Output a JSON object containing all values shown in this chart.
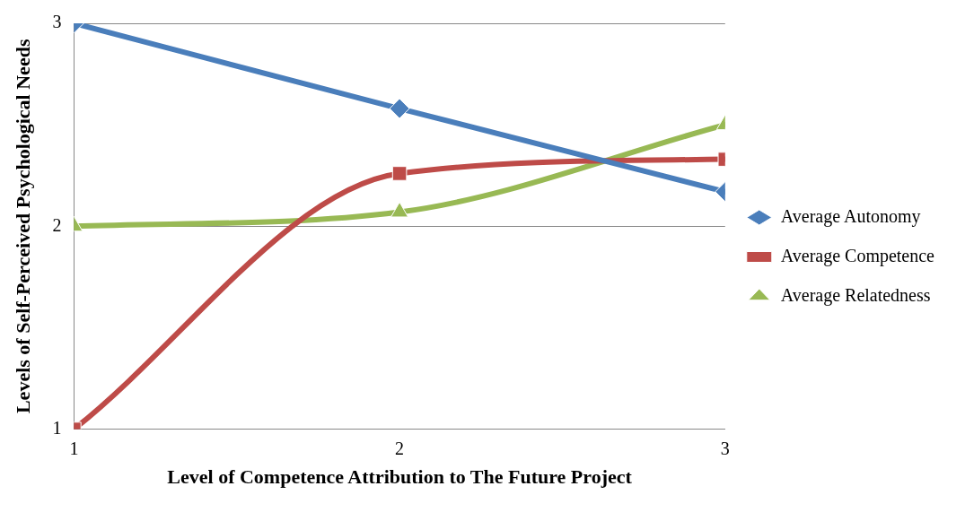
{
  "chart_data": {
    "type": "line",
    "xlabel": "Level of Competence Attribution to The Future Project",
    "ylabel": "Levels of Self-Perceived Psychological Needs",
    "x": [
      1,
      2,
      3
    ],
    "xlim": [
      1,
      3
    ],
    "xticks": [
      1,
      2,
      3
    ],
    "ylim": [
      1,
      3
    ],
    "yticks": [
      1,
      2,
      3
    ],
    "grid": "y",
    "legend": "right",
    "series": [
      {
        "name": "Average Autonomy",
        "color": "#4a7ebb",
        "marker": "diamond",
        "values": [
          3,
          2.58,
          2.17
        ]
      },
      {
        "name": "Average Competence",
        "color": "#be4b48",
        "marker": "square",
        "values": [
          1,
          2.26,
          2.33
        ]
      },
      {
        "name": "Average Relatedness",
        "color": "#98b954",
        "marker": "triangle",
        "values": [
          2,
          2.07,
          2.5
        ]
      }
    ]
  }
}
